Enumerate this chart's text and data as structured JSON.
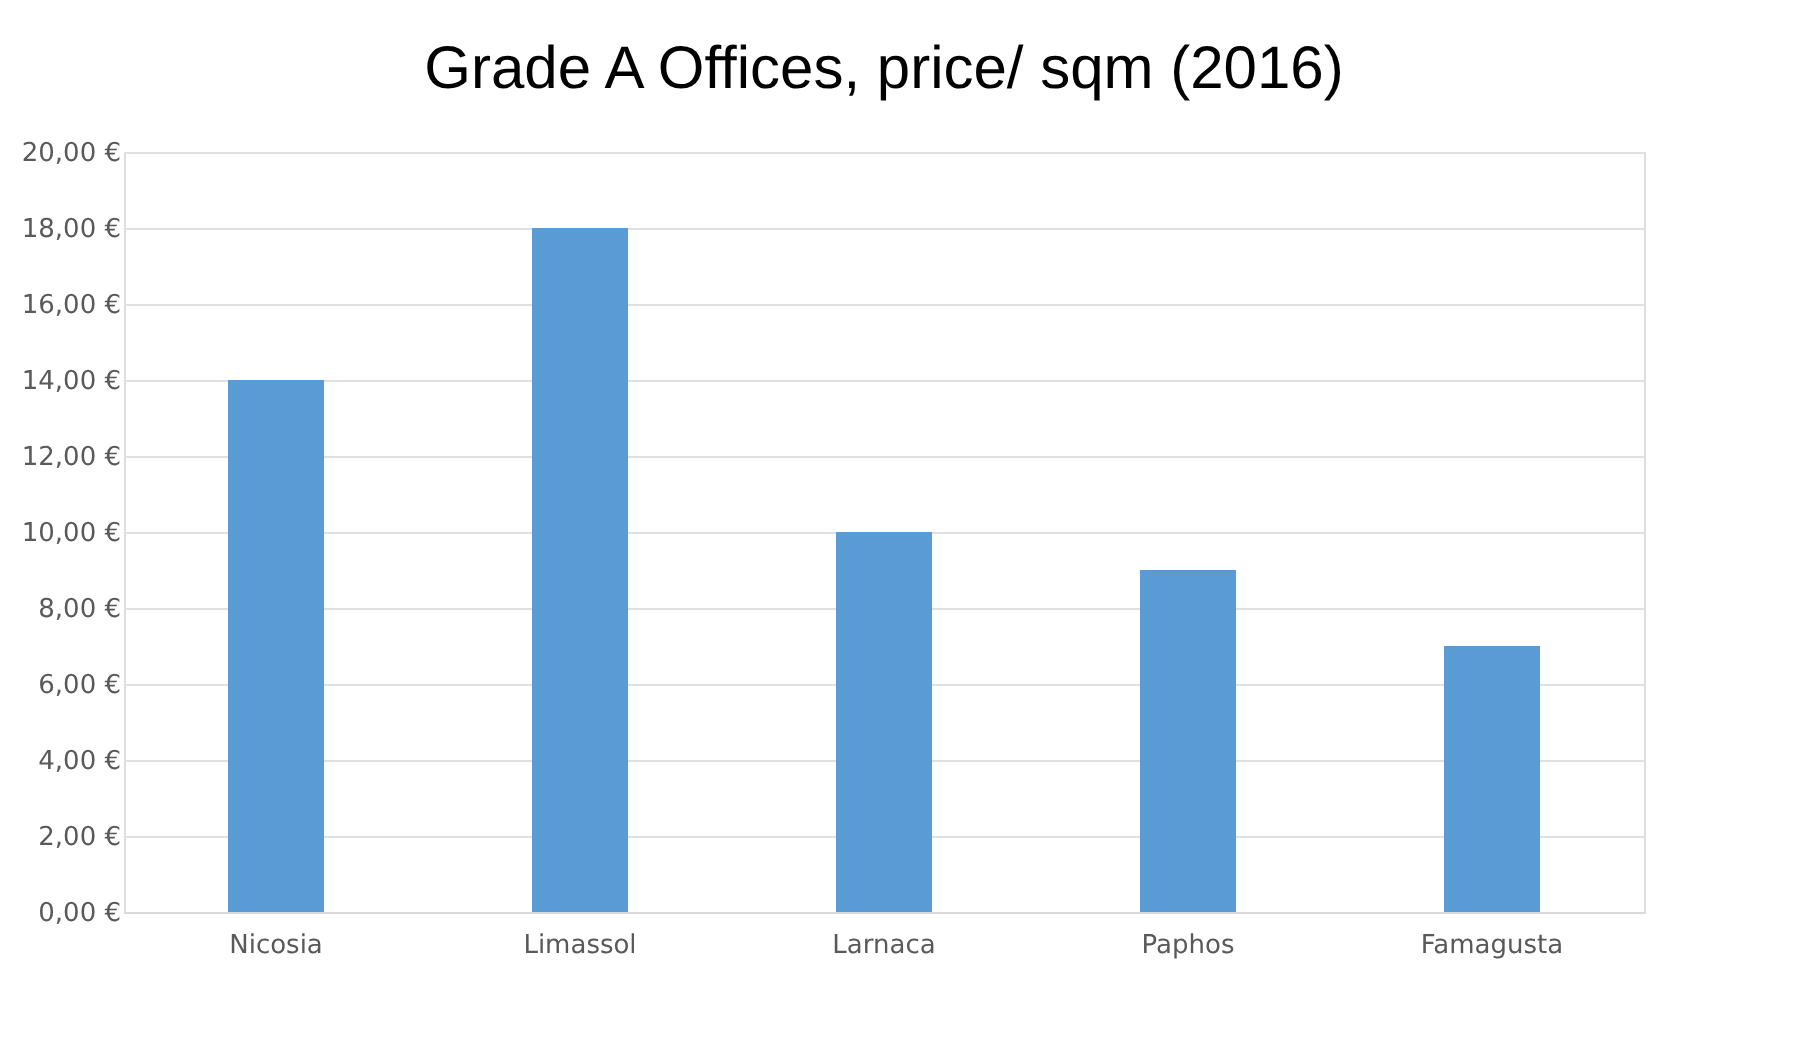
{
  "chart_data": {
    "type": "bar",
    "title": "Grade A Offices, price/ sqm (2016)",
    "categories": [
      "Nicosia",
      "Limassol",
      "Larnaca",
      "Paphos",
      "Famagusta"
    ],
    "values": [
      14,
      18,
      10,
      9,
      7
    ],
    "color": "#5b9bd5",
    "ylim": [
      0,
      20
    ],
    "yticks": [
      {
        "value": 0,
        "label": "0,00 €"
      },
      {
        "value": 2,
        "label": "2,00 €"
      },
      {
        "value": 4,
        "label": "4,00 €"
      },
      {
        "value": 6,
        "label": "6,00 €"
      },
      {
        "value": 8,
        "label": "8,00 €"
      },
      {
        "value": 10,
        "label": "10,00 €"
      },
      {
        "value": 12,
        "label": "12,00 €"
      },
      {
        "value": 14,
        "label": "14,00 €"
      },
      {
        "value": 16,
        "label": "16,00 €"
      },
      {
        "value": 18,
        "label": "18,00 €"
      },
      {
        "value": 20,
        "label": "20,00 €"
      }
    ],
    "grid": "y"
  }
}
